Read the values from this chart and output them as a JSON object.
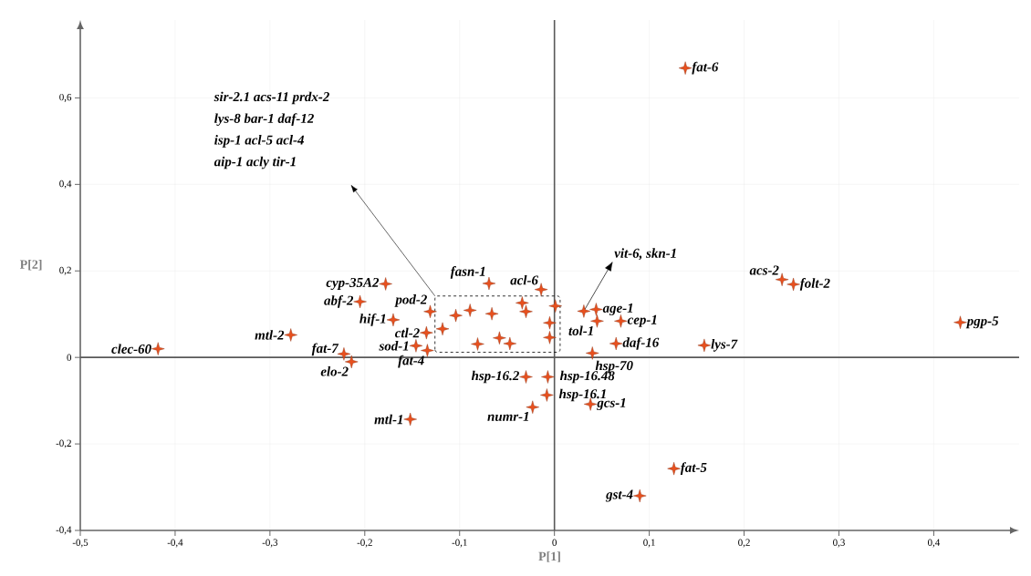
{
  "chart_data": {
    "type": "scatter",
    "xlabel": "P[1]",
    "ylabel": "P[2]",
    "x": [
      -0.418,
      -0.278,
      -0.178,
      -0.205,
      -0.131,
      -0.17,
      -0.135,
      -0.146,
      -0.134,
      -0.222,
      -0.214,
      -0.152,
      -0.069,
      -0.014,
      0.044,
      0.045,
      0.07,
      0.065,
      0.04,
      -0.03,
      -0.007,
      -0.008,
      -0.023,
      0.038,
      0.138,
      0.24,
      0.252,
      0.428,
      0.158,
      0.126,
      0.09,
      0.031,
      -0.118,
      -0.104,
      -0.089,
      -0.066,
      -0.081,
      -0.058,
      -0.047,
      -0.034,
      -0.03,
      0.001,
      -0.005,
      -0.005
    ],
    "values": [
      0.02,
      0.052,
      0.17,
      0.129,
      0.106,
      0.087,
      0.057,
      0.027,
      0.016,
      0.008,
      -0.01,
      -0.143,
      0.171,
      0.157,
      0.111,
      0.084,
      0.084,
      0.032,
      0.01,
      -0.045,
      -0.045,
      -0.087,
      -0.115,
      -0.108,
      0.669,
      0.18,
      0.169,
      0.081,
      0.028,
      -0.257,
      -0.32,
      0.107,
      0.066,
      0.097,
      0.109,
      0.101,
      0.031,
      0.045,
      0.032,
      0.126,
      0.106,
      0.119,
      0.08,
      0.046
    ],
    "value_labels": [
      "clec-60",
      "mtl-2",
      "cyp-35A2",
      "abf-2",
      "pod-2",
      "hif-1",
      "ctl-2",
      "sod-1",
      "fat-4",
      "fat-7",
      "elo-2",
      "mtl-1",
      "fasn-1",
      "acl-6",
      "age-1",
      "tol-1",
      "cep-1",
      "daf-16",
      "hsp-70",
      "hsp-16.2",
      "hsp-16.48",
      "hsp-16.1",
      "numr-1",
      "gcs-1",
      "fat-6",
      "acs-2",
      "folt-2",
      "pgp-5",
      "lys-7",
      "fat-5",
      "gst-4",
      null,
      null,
      null,
      null,
      null,
      null,
      null,
      null,
      null,
      null,
      null,
      null,
      null
    ],
    "color": "#e8501e",
    "marker": "star",
    "grid": true,
    "xlim": [
      -0.5,
      0.49
    ],
    "ylim": [
      -0.4,
      0.78
    ],
    "xticks": [
      {
        "value": -0.5,
        "label": "-0,5"
      },
      {
        "value": -0.4,
        "label": "-0,4"
      },
      {
        "value": -0.3,
        "label": "-0,3"
      },
      {
        "value": -0.2,
        "label": "-0,2"
      },
      {
        "value": -0.1,
        "label": "-0,1"
      },
      0,
      {
        "value": 0.1,
        "label": "0,1"
      },
      {
        "value": 0.2,
        "label": "0,2"
      },
      {
        "value": 0.3,
        "label": "0,3"
      },
      {
        "value": 0.4,
        "label": "0,4"
      }
    ],
    "yticks": [
      {
        "value": -0.4,
        "label": "-0,4"
      },
      {
        "value": -0.2,
        "label": "-0,2"
      },
      0,
      {
        "value": 0.2,
        "label": "0,2"
      },
      {
        "value": 0.4,
        "label": "0,4"
      },
      {
        "value": 0.6,
        "label": "0,6"
      }
    ],
    "annotations": [
      "sir-2.1  acs-11  prdx-2",
      "lys-8  bar-1  daf-12",
      "isp-1  acl-5  acl-4",
      "aip-1  acly  tir-1",
      {
        "text": "vit-6, skn-1",
        "x": 0.031,
        "y": 0.107
      }
    ]
  }
}
